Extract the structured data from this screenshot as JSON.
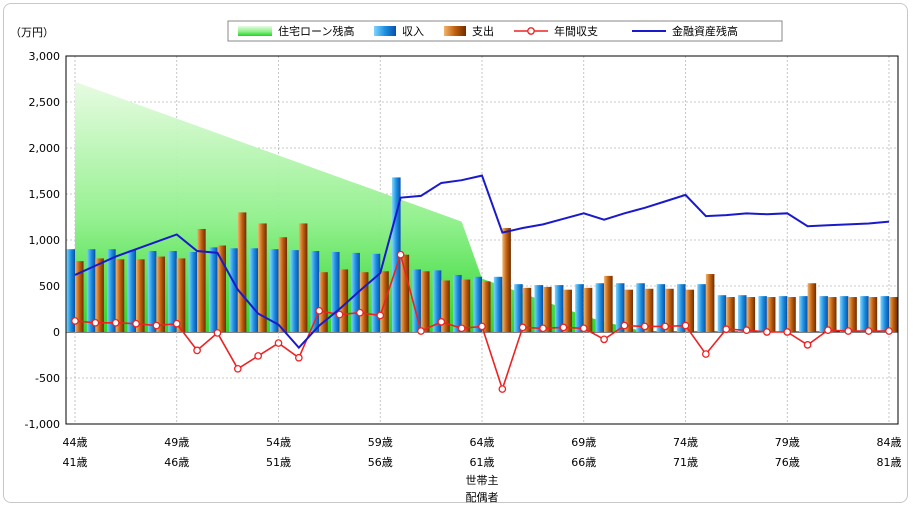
{
  "chart_data": {
    "type": "bar",
    "unit_label": "（万円）",
    "ylim": [
      -1000,
      3000
    ],
    "y_ticks": [
      3000,
      2500,
      2000,
      1500,
      1000,
      500,
      0,
      -500,
      -1000
    ],
    "y_tick_labels": [
      "3,000",
      "2,500",
      "2,000",
      "1,500",
      "1,000",
      "500",
      "0",
      "-500",
      "-1,000"
    ],
    "grid": true,
    "legend_position": "top",
    "x_ticks_householder": [
      "44歳",
      "49歳",
      "54歳",
      "59歳",
      "64歳",
      "69歳",
      "74歳",
      "79歳",
      "84歳"
    ],
    "x_ticks_spouse": [
      "41歳",
      "46歳",
      "51歳",
      "56歳",
      "61歳",
      "66歳",
      "71歳",
      "76歳",
      "81歳"
    ],
    "x_axis_labels": [
      "世帯主",
      "配偶者"
    ],
    "householder_age_start": 44,
    "series": [
      {
        "name": "住宅ローン残高",
        "type": "area",
        "color": "#33dd33",
        "values": [
          2720,
          2640,
          2560,
          2480,
          2400,
          2320,
          2240,
          2160,
          2080,
          2000,
          1920,
          1840,
          1760,
          1680,
          1600,
          1520,
          1440,
          1360,
          1280,
          1200,
          580,
          500,
          420,
          340,
          260,
          180,
          110,
          60,
          0,
          0,
          0,
          0,
          0,
          0,
          0,
          0,
          0,
          0,
          0,
          0,
          0
        ]
      },
      {
        "name": "収入",
        "type": "bar",
        "color": "#1e90e0",
        "values": [
          900,
          900,
          900,
          890,
          880,
          880,
          870,
          920,
          910,
          910,
          900,
          890,
          880,
          870,
          860,
          850,
          1680,
          680,
          670,
          620,
          600,
          600,
          520,
          510,
          510,
          520,
          530,
          530,
          530,
          520,
          520,
          520,
          400,
          400,
          390,
          390,
          390,
          390,
          390,
          390,
          390
        ]
      },
      {
        "name": "支出",
        "type": "bar",
        "color": "#c06010",
        "values": [
          770,
          800,
          790,
          790,
          820,
          800,
          1120,
          940,
          1300,
          1180,
          1030,
          1180,
          650,
          680,
          650,
          660,
          840,
          660,
          560,
          570,
          550,
          1130,
          480,
          490,
          460,
          480,
          610,
          460,
          470,
          470,
          460,
          630,
          380,
          380,
          380,
          380,
          530,
          380,
          380,
          380,
          380
        ]
      },
      {
        "name": "年間収支",
        "type": "line",
        "color": "#ee2222",
        "values": [
          120,
          100,
          100,
          90,
          70,
          90,
          -200,
          -10,
          -400,
          -260,
          -120,
          -280,
          230,
          190,
          210,
          180,
          840,
          10,
          110,
          40,
          60,
          -620,
          50,
          40,
          50,
          40,
          -80,
          70,
          60,
          60,
          70,
          -240,
          30,
          20,
          0,
          0,
          -140,
          20,
          10,
          10,
          10
        ]
      },
      {
        "name": "金融資産残高",
        "type": "line",
        "color": "#1a1acc",
        "values": [
          620,
          720,
          820,
          900,
          980,
          1060,
          880,
          860,
          460,
          200,
          80,
          -170,
          70,
          250,
          450,
          640,
          1460,
          1480,
          1620,
          1650,
          1700,
          1080,
          1130,
          1170,
          1230,
          1290,
          1220,
          1290,
          1350,
          1420,
          1490,
          1260,
          1270,
          1290,
          1280,
          1290,
          1150,
          1160,
          1170,
          1180,
          1200
        ]
      }
    ]
  }
}
